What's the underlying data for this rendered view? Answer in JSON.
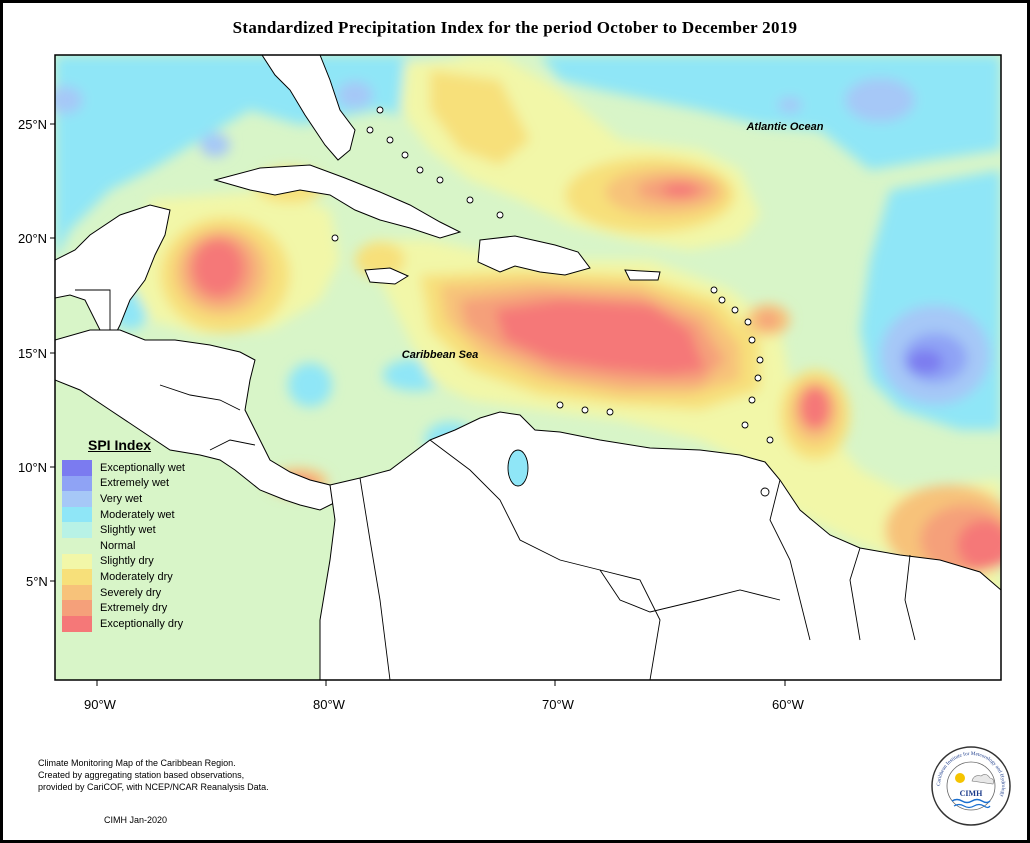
{
  "title": "Standardized Precipitation Index for the period October to December 2019",
  "map": {
    "region": "Caribbean",
    "annotations": [
      {
        "label": "Atlantic Ocean"
      },
      {
        "label": "Caribbean Sea"
      }
    ],
    "lat_ticks": [
      "25°N",
      "20°N",
      "15°N",
      "10°N",
      "5°N"
    ],
    "lon_ticks": [
      "90°W",
      "80°W",
      "70°W",
      "60°W"
    ]
  },
  "legend": {
    "title": "SPI Index",
    "items": [
      {
        "label": "Exceptionally wet",
        "color": "#7b7bf0"
      },
      {
        "label": "Extremely wet",
        "color": "#8fa3f5"
      },
      {
        "label": "Very wet",
        "color": "#a6c8f7"
      },
      {
        "label": "Moderately wet",
        "color": "#8fe6f7"
      },
      {
        "label": "Slightly wet",
        "color": "#b8f2e6"
      },
      {
        "label": "Normal",
        "color": "#d8f5c8"
      },
      {
        "label": "Slightly dry",
        "color": "#f2f7a8"
      },
      {
        "label": "Moderately dry",
        "color": "#f7e07a"
      },
      {
        "label": "Severely dry",
        "color": "#f7c27a"
      },
      {
        "label": "Extremely dry",
        "color": "#f5a07a"
      },
      {
        "label": "Exceptionally dry",
        "color": "#f57878"
      }
    ]
  },
  "footnote": [
    "Climate Monitoring Map of the Caribbean Region.",
    "Created by aggregating station based observations,",
    "provided by CariCOF, with NCEP/NCAR Reanalysis Data."
  ],
  "credit": "CIMH Jan-2020",
  "logo": {
    "abbr": "CIMH",
    "ring_text": "Caribbean Institute for Meteorology and Hydrology"
  }
}
